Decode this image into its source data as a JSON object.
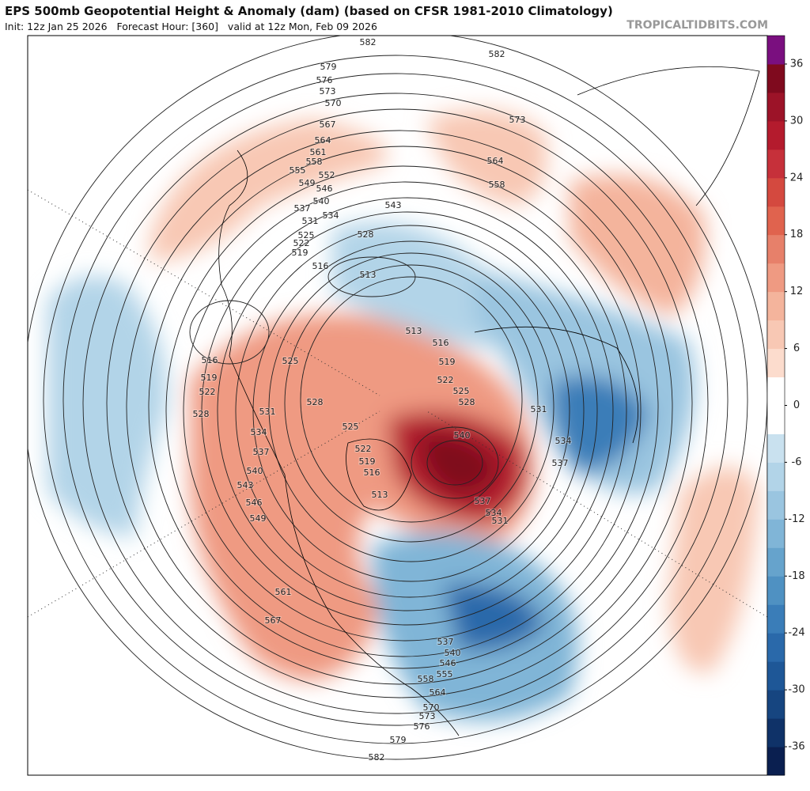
{
  "header": {
    "title": "EPS 500mb Geopotential Height & Anomaly (dam) (based on CFSR 1981-2010 Climatology)",
    "subtitle": "Init: 12z Jan 25 2026   Forecast Hour: [360]   valid at 12z Mon, Feb 09 2026",
    "source": "TROPICALTIDBITS.COM"
  },
  "colorbar": {
    "lim": [
      -39,
      39
    ],
    "ticks": [
      36,
      30,
      24,
      18,
      12,
      6,
      0,
      -6,
      -12,
      -18,
      -24,
      -30,
      -36
    ],
    "colors": [
      "#0a1f50",
      "#0f3268",
      "#164580",
      "#1e5797",
      "#2a69aa",
      "#3a7db8",
      "#4f91c2",
      "#66a3cc",
      "#80b5d7",
      "#9ac5e0",
      "#b2d4e8",
      "#c9e1ef",
      "#ffffff",
      "#ffffff",
      "#fcdccd",
      "#f8c8b4",
      "#f4b49c",
      "#ef9a82",
      "#e7806a",
      "#e0634e",
      "#d4493f",
      "#c6303a",
      "#b41b2d",
      "#9c1328",
      "#7f0a1e",
      "#7a0f7f"
    ]
  },
  "contour_labels": [
    "582",
    "582",
    "579",
    "576",
    "573",
    "570",
    "567",
    "564",
    "561",
    "558",
    "555",
    "552",
    "549",
    "546",
    "540",
    "537",
    "543",
    "534",
    "531",
    "528",
    "525",
    "522",
    "519",
    "516",
    "513",
    "573",
    "564",
    "558",
    "516",
    "519",
    "522",
    "528",
    "525",
    "531",
    "528",
    "534",
    "537",
    "540",
    "543",
    "546",
    "549",
    "561",
    "567",
    "513",
    "516",
    "519",
    "522",
    "525",
    "528",
    "531",
    "534",
    "537",
    "540",
    "525",
    "522",
    "519",
    "516",
    "513",
    "537",
    "534",
    "531",
    "537",
    "540",
    "546",
    "555",
    "558",
    "564",
    "570",
    "573",
    "576",
    "579",
    "582"
  ]
}
